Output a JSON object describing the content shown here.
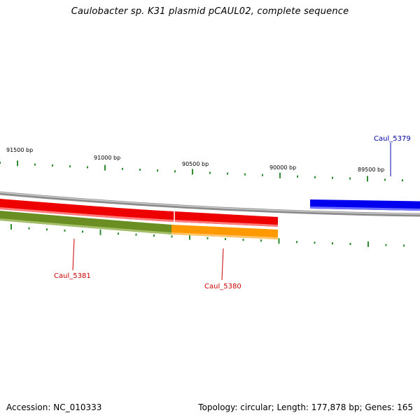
{
  "title": "Caulobacter sp. K31 plasmid pCAUL02, complete sequence",
  "footer": {
    "accession": "Accession: NC_010333",
    "summary": "Topology: circular; Length: 177,878 bp; Genes: 165"
  },
  "scale_labels": [
    "91500 bp",
    "91000 bp",
    "90500 bp",
    "90000 bp",
    "89500 bp"
  ],
  "gene_labels": {
    "caul_5379": "Caul_5379",
    "caul_5380": "Caul_5380",
    "caul_5381": "Caul_5381"
  },
  "colors": {
    "backbone": "#8c8c8c",
    "caul_5379": "#0000ee",
    "caul_5380": "#ff9900",
    "caul_5381_forward": "#ee0000",
    "caul_5381_reverse": "#6b8e23",
    "ticks": "#2e8b2e",
    "forward_label": "#0000aa",
    "reverse_label": "#cc0000"
  }
}
